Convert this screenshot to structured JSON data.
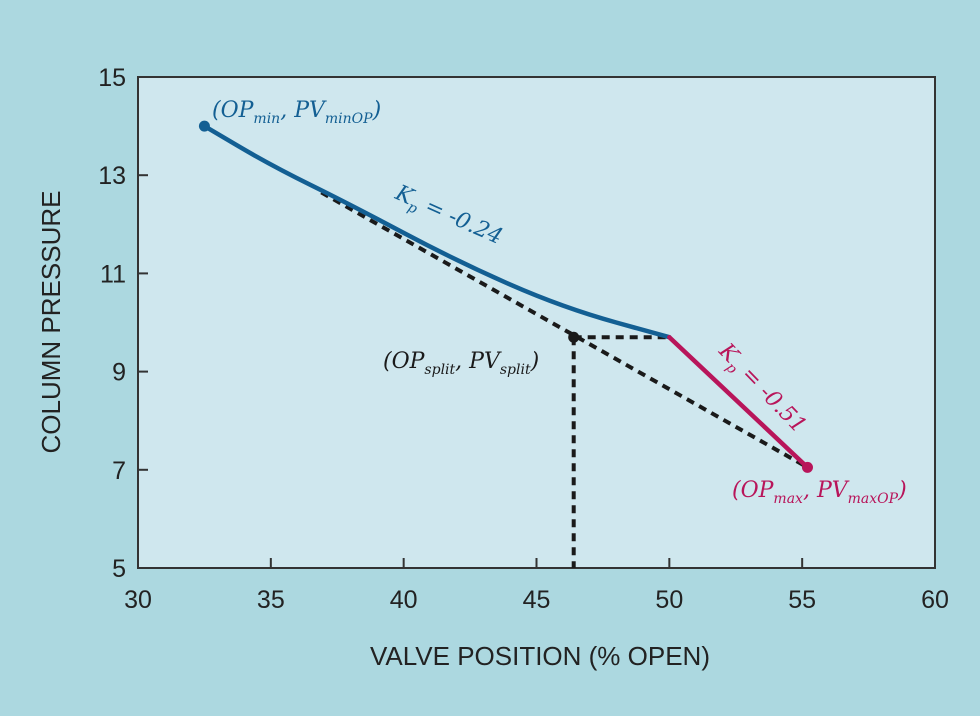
{
  "chart_data": {
    "type": "line",
    "xlabel": "VALVE POSITION (% OPEN)",
    "ylabel": "COLUMN PRESSURE",
    "xlim": [
      30,
      60
    ],
    "ylim": [
      5,
      15
    ],
    "xticks": [
      "30",
      "35",
      "40",
      "45",
      "50",
      "55",
      "60"
    ],
    "yticks": [
      "5",
      "7",
      "9",
      "11",
      "13",
      "15"
    ],
    "grid": false,
    "series": [
      {
        "name": "Kp = -0.24",
        "color": "#135f93",
        "x": [
          32.5,
          35,
          38,
          42,
          46,
          50.0
        ],
        "y": [
          14.0,
          13.2,
          12.4,
          11.25,
          10.3,
          9.7
        ]
      },
      {
        "name": "Kp = -0.51",
        "color": "#b8155a",
        "x": [
          50.0,
          55.2
        ],
        "y": [
          9.7,
          7.05
        ]
      }
    ],
    "dashed_lines": [
      {
        "x": [
          36.9,
          55.2
        ],
        "y": [
          12.65,
          7.05
        ]
      },
      {
        "x": [
          46.4,
          50.0
        ],
        "y": [
          9.7,
          9.7
        ]
      },
      {
        "x": [
          46.4,
          46.4
        ],
        "y": [
          9.7,
          5
        ]
      }
    ],
    "points": [
      {
        "label": "min",
        "x": 32.5,
        "y": 14.0,
        "color": "#135f93"
      },
      {
        "label": "split",
        "x": 46.4,
        "y": 9.7,
        "color": "#1a1a1a"
      },
      {
        "label": "max",
        "x": 55.2,
        "y": 7.05,
        "color": "#b8155a"
      }
    ],
    "annotations": {
      "min": {
        "open": "(OP",
        "sub1": "min",
        "mid": ", PV",
        "sub2": "minOP",
        "close": ")"
      },
      "split": {
        "open": "(OP",
        "sub1": "split",
        "mid": ", PV",
        "sub2": "split",
        "close": ")"
      },
      "max": {
        "open": "(OP",
        "sub1": "max",
        "mid": ", PV",
        "sub2": "maxOP",
        "close": ")"
      },
      "kp1": {
        "k": "K",
        "sub": "p",
        "rest": " = -0.24"
      },
      "kp2": {
        "k": "K",
        "sub": "p",
        "rest": " = -0.51"
      }
    }
  }
}
